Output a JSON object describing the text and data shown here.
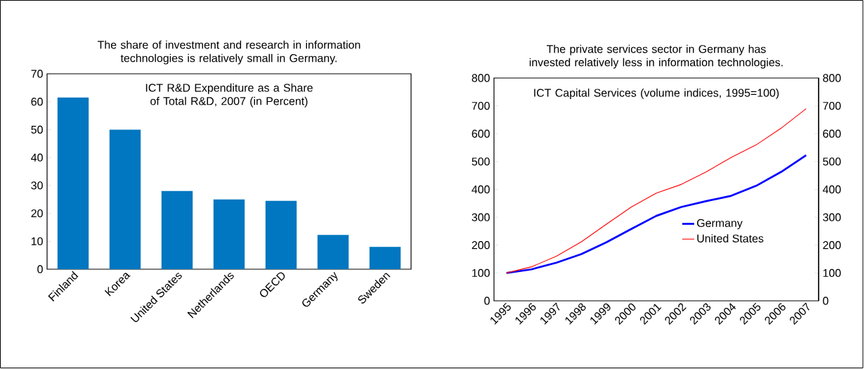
{
  "chart_data": [
    {
      "type": "bar",
      "title": "The share of investment and research in information technologies is relatively small in Germany.",
      "subtitle": "ICT R&D Expenditure as a Share of Total R&D, 2007 (in Percent)",
      "categories": [
        "Finland",
        "Korea",
        "United States",
        "Netherlands",
        "OECD",
        "Germany",
        "Sweden"
      ],
      "values": [
        61.5,
        50,
        28,
        25,
        24.5,
        12.3,
        8
      ],
      "color": "#0077c0",
      "ylim": [
        0,
        70
      ],
      "yticks": [
        0,
        10,
        20,
        30,
        40,
        50,
        60,
        70
      ]
    },
    {
      "type": "line",
      "title": "The  private services sector  in Germany has invested relatively less in information technologies.",
      "subtitle": "ICT Capital Services (volume indices, 1995=100)",
      "categories": [
        "1995",
        "1996",
        "1997",
        "1998",
        "1999",
        "2000",
        "2001",
        "2002",
        "2003",
        "2004",
        "2005",
        "2006",
        "2007"
      ],
      "series": [
        {
          "name": "Germany",
          "color": "#0000ff",
          "values": [
            100,
            113,
            137,
            168,
            210,
            258,
            305,
            337,
            358,
            377,
            413,
            463,
            523
          ]
        },
        {
          "name": "United States",
          "color": "#ff0000",
          "values": [
            100,
            122,
            160,
            212,
            275,
            337,
            387,
            418,
            463,
            515,
            560,
            620,
            690
          ]
        }
      ],
      "ylim": [
        0,
        800
      ],
      "yticks": [
        0,
        100,
        200,
        300,
        400,
        500,
        600,
        700,
        800
      ],
      "y2lim": [
        0,
        800
      ],
      "y2ticks": [
        0,
        100,
        200,
        300,
        400,
        500,
        600,
        700,
        800
      ],
      "legend": "right"
    }
  ]
}
